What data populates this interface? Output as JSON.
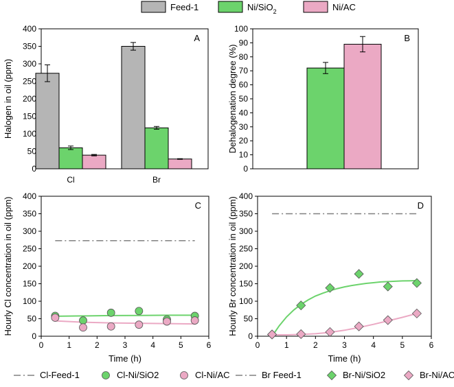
{
  "colors": {
    "feed": "#b5b5b5",
    "nisio2": "#6cd36c",
    "niac": "#eba9c4",
    "feedline": "#808080",
    "fit_green": "#6cd36c",
    "fit_pink": "#eba9c4"
  },
  "top_legend": {
    "items": [
      {
        "label": "Feed-1",
        "color_key": "feed"
      },
      {
        "label": "Ni/SiO2",
        "color_key": "nisio2"
      },
      {
        "label": "Ni/AC",
        "color_key": "niac"
      }
    ]
  },
  "bottom_legend": {
    "items": [
      {
        "label": "Cl-Feed-1",
        "marker": "dashdot"
      },
      {
        "label": "Cl-Ni/SiO2",
        "marker": "circle-green"
      },
      {
        "label": "Cl-Ni/AC",
        "marker": "circle-pink"
      },
      {
        "label": "Br Feed-1",
        "marker": "dashdot"
      },
      {
        "label": "Br-Ni/SiO2",
        "marker": "diamond-green"
      },
      {
        "label": "Br-Ni/AC",
        "marker": "diamond-pink"
      }
    ]
  },
  "chart_data": [
    {
      "panel": "A",
      "type": "bar",
      "ylabel": "Halogen in oil (ppm)",
      "xlabel": "",
      "ylim": [
        0,
        400
      ],
      "yticks": [
        0,
        50,
        100,
        150,
        200,
        250,
        300,
        350,
        400
      ],
      "categories": [
        "Cl",
        "Br"
      ],
      "series": [
        {
          "name": "Feed-1",
          "values": [
            273,
            350
          ],
          "errors": [
            24,
            11
          ]
        },
        {
          "name": "Ni/SiO2",
          "values": [
            60,
            117
          ],
          "errors": [
            5,
            4
          ]
        },
        {
          "name": "Ni/AC",
          "values": [
            39,
            28
          ],
          "errors": [
            2,
            1
          ]
        }
      ]
    },
    {
      "panel": "B",
      "type": "bar",
      "ylabel": "Dehalogenation degree (%)",
      "xlabel": "",
      "ylim": [
        0,
        100
      ],
      "yticks": [
        0,
        10,
        20,
        30,
        40,
        50,
        60,
        70,
        80,
        90,
        100
      ],
      "categories": [
        ""
      ],
      "series": [
        {
          "name": "Ni/SiO2",
          "values": [
            72
          ],
          "errors": [
            4
          ]
        },
        {
          "name": "Ni/AC",
          "values": [
            89
          ],
          "errors": [
            5.5
          ]
        }
      ]
    },
    {
      "panel": "C",
      "type": "scatter",
      "ylabel": "Hourly Cl concentration in oil (ppm)",
      "xlabel": "Time (h)",
      "xlim": [
        0,
        6
      ],
      "ylim": [
        0,
        400
      ],
      "xticks": [
        0,
        1,
        2,
        3,
        4,
        5,
        6
      ],
      "yticks": [
        0,
        50,
        100,
        150,
        200,
        250,
        300,
        350,
        400
      ],
      "reference_lines": [
        {
          "name": "Cl-Feed-1",
          "y": 273,
          "x_range": [
            0.5,
            5.5
          ]
        }
      ],
      "series": [
        {
          "name": "Cl-Ni/SiO2",
          "marker": "circle",
          "color_key": "nisio2",
          "x": [
            0.5,
            1.5,
            2.5,
            3.5,
            4.5,
            5.5
          ],
          "y": [
            58,
            45,
            67,
            72,
            48,
            58
          ]
        },
        {
          "name": "Cl-Ni/AC",
          "marker": "circle",
          "color_key": "niac",
          "x": [
            0.5,
            1.5,
            2.5,
            3.5,
            4.5,
            5.5
          ],
          "y": [
            53,
            25,
            28,
            33,
            42,
            45
          ]
        }
      ],
      "fits": [
        {
          "color_key": "fit_green",
          "x": [
            0.5,
            1.5,
            2.5,
            3.5,
            4.5,
            5.5
          ],
          "y": [
            57,
            58,
            59,
            59.5,
            60,
            60
          ]
        },
        {
          "color_key": "fit_pink",
          "x": [
            0.5,
            1.5,
            2.5,
            3.5,
            4.5,
            5.5
          ],
          "y": [
            44,
            40,
            38,
            37,
            36,
            35
          ]
        }
      ]
    },
    {
      "panel": "D",
      "type": "scatter",
      "ylabel": "Hourly Br concentration in oil (ppm)",
      "xlabel": "Time (h)",
      "xlim": [
        0,
        6
      ],
      "ylim": [
        0,
        400
      ],
      "xticks": [
        0,
        1,
        2,
        3,
        4,
        5,
        6
      ],
      "yticks": [
        0,
        50,
        100,
        150,
        200,
        250,
        300,
        350,
        400
      ],
      "reference_lines": [
        {
          "name": "Br Feed-1",
          "y": 350,
          "x_range": [
            0.5,
            5.5
          ]
        }
      ],
      "series": [
        {
          "name": "Br-Ni/SiO2",
          "marker": "diamond",
          "color_key": "nisio2",
          "x": [
            0.5,
            1.5,
            2.5,
            3.5,
            4.5,
            5.5
          ],
          "y": [
            5,
            88,
            138,
            178,
            142,
            152
          ]
        },
        {
          "name": "Br-Ni/AC",
          "marker": "diamond",
          "color_key": "niac",
          "x": [
            0.5,
            1.5,
            2.5,
            3.5,
            4.5,
            5.5
          ],
          "y": [
            5,
            6,
            12,
            28,
            46,
            65
          ]
        }
      ],
      "fits": [
        {
          "color_key": "fit_green",
          "x": [
            0.5,
            0.75,
            1,
            1.25,
            1.5,
            1.75,
            2,
            2.25,
            2.5,
            2.75,
            3,
            3.25,
            3.5,
            3.75,
            4,
            4.25,
            4.5,
            4.75,
            5,
            5.25,
            5.5
          ],
          "y": [
            0,
            30,
            55,
            75,
            91,
            104,
            115,
            123,
            130,
            136,
            141,
            145,
            148,
            151,
            153,
            155,
            156,
            157,
            158,
            158.5,
            159
          ]
        },
        {
          "color_key": "fit_pink",
          "x": [
            0.5,
            1,
            1.5,
            2,
            2.5,
            3,
            3.5,
            4,
            4.5,
            5,
            5.5
          ],
          "y": [
            4,
            4,
            5,
            7,
            11,
            17,
            25,
            34,
            44,
            54,
            65
          ]
        }
      ]
    }
  ]
}
